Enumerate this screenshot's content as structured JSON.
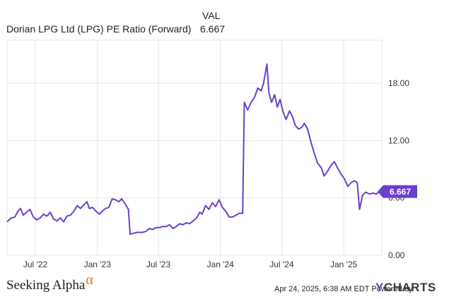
{
  "header": {
    "column_label": "VAL",
    "series_name": "Dorian LPG Ltd (LPG) PE Ratio (Forward)",
    "series_value": "6.667"
  },
  "footer": {
    "brand_left": "Seeking Alpha",
    "brand_left_symbol": "α",
    "timestamp": "Apr 24, 2025, 6:38 AM EDT",
    "powered_by": "Powered by",
    "brand_right": "CHARTS",
    "brand_right_prefix": "Y"
  },
  "colors": {
    "line": "#6a3fcf",
    "badge": "#6a3fcf",
    "grid": "#e4e4e4",
    "axis_text": "#333333",
    "brand_alpha": "#f26d21"
  },
  "chart_data": {
    "type": "line",
    "title": "",
    "xlabel": "",
    "ylabel": "",
    "x_ticks": [
      "Jul '22",
      "Jan '23",
      "Jul '23",
      "Jan '24",
      "Jul '24",
      "Jan '25"
    ],
    "y_ticks": [
      "0.00",
      "6.00",
      "12.00",
      "18.00"
    ],
    "ylim": [
      0,
      22.5
    ],
    "xlim": [
      "2022-04-08",
      "2025-04-24"
    ],
    "grid": true,
    "last_value_label": "6.667",
    "series": [
      {
        "name": "Dorian LPG Ltd (LPG) PE Ratio (Forward)",
        "points": [
          [
            "2022-04-08",
            3.5
          ],
          [
            "2022-04-20",
            3.9
          ],
          [
            "2022-05-01",
            4.0
          ],
          [
            "2022-05-10",
            4.6
          ],
          [
            "2022-05-18",
            4.9
          ],
          [
            "2022-05-26",
            4.2
          ],
          [
            "2022-06-05",
            4.5
          ],
          [
            "2022-06-15",
            4.8
          ],
          [
            "2022-06-25",
            4.0
          ],
          [
            "2022-07-05",
            3.7
          ],
          [
            "2022-07-15",
            3.9
          ],
          [
            "2022-07-25",
            4.3
          ],
          [
            "2022-08-04",
            4.1
          ],
          [
            "2022-08-14",
            4.5
          ],
          [
            "2022-08-24",
            3.8
          ],
          [
            "2022-09-03",
            3.6
          ],
          [
            "2022-09-13",
            3.9
          ],
          [
            "2022-09-23",
            3.5
          ],
          [
            "2022-10-03",
            4.1
          ],
          [
            "2022-10-13",
            4.2
          ],
          [
            "2022-10-23",
            4.6
          ],
          [
            "2022-11-02",
            5.2
          ],
          [
            "2022-11-12",
            4.9
          ],
          [
            "2022-11-22",
            5.3
          ],
          [
            "2022-12-01",
            5.6
          ],
          [
            "2022-12-08",
            4.9
          ],
          [
            "2022-12-18",
            5.0
          ],
          [
            "2022-12-28",
            4.6
          ],
          [
            "2023-01-07",
            4.3
          ],
          [
            "2023-01-15",
            4.6
          ],
          [
            "2023-01-25",
            4.9
          ],
          [
            "2023-02-04",
            5.0
          ],
          [
            "2023-02-14",
            5.9
          ],
          [
            "2023-02-24",
            5.8
          ],
          [
            "2023-03-06",
            5.6
          ],
          [
            "2023-03-14",
            5.9
          ],
          [
            "2023-03-24",
            5.4
          ],
          [
            "2023-04-03",
            4.8
          ],
          [
            "2023-04-08",
            2.2
          ],
          [
            "2023-04-18",
            2.3
          ],
          [
            "2023-04-28",
            2.4
          ],
          [
            "2023-05-15",
            2.4
          ],
          [
            "2023-05-25",
            2.5
          ],
          [
            "2023-06-04",
            2.8
          ],
          [
            "2023-06-14",
            2.7
          ],
          [
            "2023-06-24",
            2.9
          ],
          [
            "2023-07-04",
            2.9
          ],
          [
            "2023-07-14",
            3.0
          ],
          [
            "2023-07-24",
            3.0
          ],
          [
            "2023-08-03",
            3.2
          ],
          [
            "2023-08-13",
            2.8
          ],
          [
            "2023-08-23",
            3.0
          ],
          [
            "2023-09-02",
            3.3
          ],
          [
            "2023-09-12",
            3.2
          ],
          [
            "2023-09-22",
            3.4
          ],
          [
            "2023-10-02",
            3.3
          ],
          [
            "2023-10-12",
            3.6
          ],
          [
            "2023-10-22",
            3.9
          ],
          [
            "2023-11-01",
            4.5
          ],
          [
            "2023-11-08",
            4.3
          ],
          [
            "2023-11-18",
            5.2
          ],
          [
            "2023-11-28",
            4.8
          ],
          [
            "2023-12-08",
            5.5
          ],
          [
            "2023-12-18",
            5.1
          ],
          [
            "2023-12-28",
            5.8
          ],
          [
            "2024-01-07",
            5.0
          ],
          [
            "2024-01-17",
            4.6
          ],
          [
            "2024-01-27",
            4.0
          ],
          [
            "2024-02-06",
            4.0
          ],
          [
            "2024-02-16",
            4.2
          ],
          [
            "2024-02-26",
            4.4
          ],
          [
            "2024-03-07",
            4.4
          ],
          [
            "2024-03-12",
            16.0
          ],
          [
            "2024-03-22",
            15.2
          ],
          [
            "2024-04-01",
            16.0
          ],
          [
            "2024-04-11",
            16.5
          ],
          [
            "2024-04-21",
            17.5
          ],
          [
            "2024-05-01",
            17.2
          ],
          [
            "2024-05-08",
            18.0
          ],
          [
            "2024-05-14",
            19.2
          ],
          [
            "2024-05-18",
            20.0
          ],
          [
            "2024-05-24",
            17.0
          ],
          [
            "2024-06-01",
            16.0
          ],
          [
            "2024-06-10",
            16.8
          ],
          [
            "2024-06-18",
            15.5
          ],
          [
            "2024-06-26",
            16.3
          ],
          [
            "2024-07-05",
            15.0
          ],
          [
            "2024-07-14",
            14.2
          ],
          [
            "2024-07-24",
            15.1
          ],
          [
            "2024-08-02",
            14.5
          ],
          [
            "2024-08-10",
            13.6
          ],
          [
            "2024-08-20",
            13.2
          ],
          [
            "2024-08-30",
            13.4
          ],
          [
            "2024-09-06",
            13.8
          ],
          [
            "2024-09-16",
            13.2
          ],
          [
            "2024-09-26",
            11.8
          ],
          [
            "2024-10-06",
            10.6
          ],
          [
            "2024-10-16",
            9.6
          ],
          [
            "2024-10-26",
            9.2
          ],
          [
            "2024-11-04",
            8.3
          ],
          [
            "2024-11-14",
            8.8
          ],
          [
            "2024-11-24",
            9.4
          ],
          [
            "2024-12-04",
            9.8
          ],
          [
            "2024-12-14",
            9.1
          ],
          [
            "2024-12-24",
            8.5
          ],
          [
            "2025-01-03",
            8.0
          ],
          [
            "2025-01-13",
            7.2
          ],
          [
            "2025-01-23",
            7.6
          ],
          [
            "2025-02-02",
            7.8
          ],
          [
            "2025-02-10",
            7.6
          ],
          [
            "2025-02-17",
            4.8
          ],
          [
            "2025-02-26",
            6.3
          ],
          [
            "2025-03-08",
            6.6
          ],
          [
            "2025-03-18",
            6.4
          ],
          [
            "2025-03-28",
            6.5
          ],
          [
            "2025-04-07",
            6.4
          ],
          [
            "2025-04-15",
            6.6
          ],
          [
            "2025-04-24",
            6.667
          ]
        ]
      }
    ]
  }
}
